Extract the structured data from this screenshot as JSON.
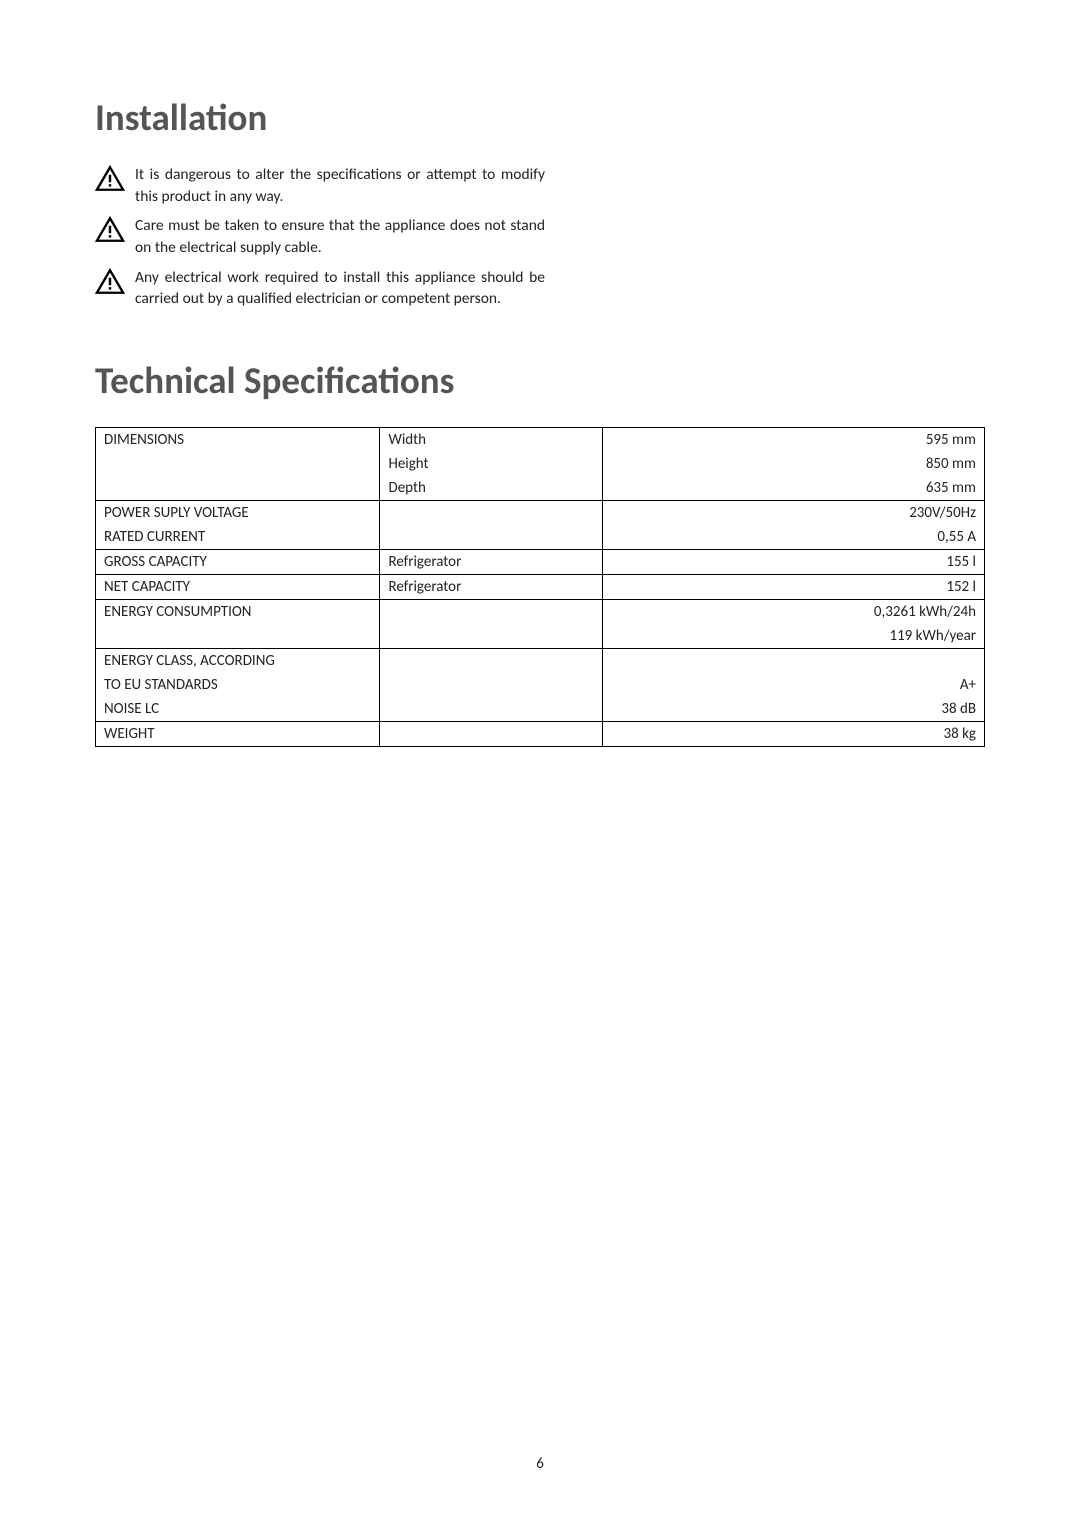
{
  "headings": {
    "installation": "Installation",
    "technical_specs": "Technical Specifications"
  },
  "warnings": [
    "It is dangerous to alter the specifications or attempt to modify this product in any way.",
    "Care must be taken to ensure that the appliance does not stand on the electrical supply cable.",
    "Any electrical work required to install this appliance should be carried out by a qualified electrician or competent person."
  ],
  "icon": {
    "stroke_color": "#000000",
    "fill_color": "#000000"
  },
  "table": {
    "columns": [
      "label",
      "mid",
      "value"
    ],
    "column_widths": [
      "32%",
      "25%",
      "43%"
    ],
    "rows": [
      {
        "section_top": true,
        "label": "DIMENSIONS",
        "mid": "Width",
        "value": "595 mm"
      },
      {
        "section_top": false,
        "label": "",
        "mid": "Height",
        "value": "850 mm"
      },
      {
        "section_top": false,
        "label": "",
        "mid": "Depth",
        "value": "635 mm"
      },
      {
        "section_top": true,
        "label": "POWER SUPLY VOLTAGE",
        "mid": "",
        "value": "230V/50Hz"
      },
      {
        "section_top": false,
        "label": "RATED CURRENT",
        "mid": "",
        "value": "0,55 A"
      },
      {
        "section_top": true,
        "label": "GROSS CAPACITY",
        "mid": "Refrigerator",
        "value": "155 l"
      },
      {
        "section_top": true,
        "label": "NET CAPACITY",
        "mid": "Refrigerator",
        "value": "152 l"
      },
      {
        "section_top": true,
        "label": "ENERGY CONSUMPTION",
        "mid": "",
        "value": "0,3261 kWh/24h"
      },
      {
        "section_top": false,
        "label": "",
        "mid": "",
        "value": "119 kWh/year"
      },
      {
        "section_top": true,
        "label": "ENERGY CLASS, ACCORDING",
        "mid": "",
        "value": ""
      },
      {
        "section_top": false,
        "label": "TO EU STANDARDS",
        "mid": "",
        "value": "A+"
      },
      {
        "section_top": false,
        "label": "NOISE LC",
        "mid": "",
        "value": "38 dB"
      },
      {
        "section_top": true,
        "label": "WEIGHT",
        "mid": "",
        "value": "38 kg",
        "last": true
      }
    ]
  },
  "page_number": "6",
  "colors": {
    "heading": "#555555",
    "text": "#222222",
    "border": "#000000",
    "background": "#ffffff"
  },
  "typography": {
    "heading_fontsize": 37,
    "body_fontsize": 15.5,
    "table_fontsize": 15
  }
}
